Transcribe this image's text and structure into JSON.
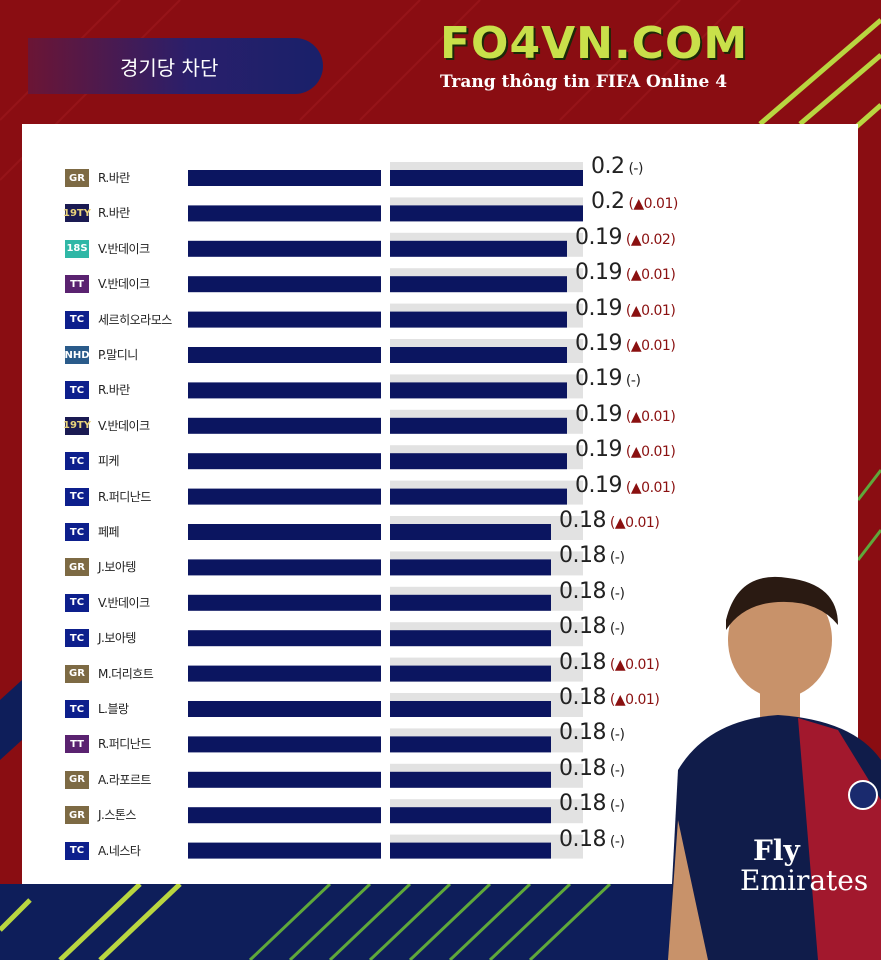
{
  "header": {
    "title": "경기당 차단",
    "logo_main": "FO4VN.COM",
    "logo_sub": "Trang thông tin FIFA Online 4"
  },
  "colors": {
    "background": "#8a0d12",
    "bar": "#0b1560",
    "bar_track": "#e2e2e2",
    "accent_green": "#b9d640",
    "up_arrow": "#8a1010"
  },
  "badge_colors": {
    "GR": "#7d6a44",
    "19TY": "#1a1a52",
    "18S": "#2fb7a6",
    "TT": "#5a2270",
    "TC": "#0d1f8c",
    "NHD": "#2a5b8a"
  },
  "chart_data": {
    "type": "bar",
    "orientation": "horizontal",
    "xlim": [
      0,
      0.2
    ],
    "rows": [
      {
        "badge": "GR",
        "name": "R.바란",
        "value": 0.2,
        "label": "0.2",
        "change": "(-)"
      },
      {
        "badge": "19TY",
        "name": "R.바란",
        "value": 0.2,
        "label": "0.2",
        "change": "(▲0.01)"
      },
      {
        "badge": "18S",
        "name": "V.반데이크",
        "value": 0.19,
        "label": "0.19",
        "change": "(▲0.02)"
      },
      {
        "badge": "TT",
        "name": "V.반데이크",
        "value": 0.19,
        "label": "0.19",
        "change": "(▲0.01)"
      },
      {
        "badge": "TC",
        "name": "세르히오라모스",
        "value": 0.19,
        "label": "0.19",
        "change": "(▲0.01)"
      },
      {
        "badge": "NHD",
        "name": "P.말디니",
        "value": 0.19,
        "label": "0.19",
        "change": "(▲0.01)"
      },
      {
        "badge": "TC",
        "name": "R.바란",
        "value": 0.19,
        "label": "0.19",
        "change": "(-)"
      },
      {
        "badge": "19TY",
        "name": "V.반데이크",
        "value": 0.19,
        "label": "0.19",
        "change": "(▲0.01)"
      },
      {
        "badge": "TC",
        "name": "피케",
        "value": 0.19,
        "label": "0.19",
        "change": "(▲0.01)"
      },
      {
        "badge": "TC",
        "name": "R.퍼디난드",
        "value": 0.19,
        "label": "0.19",
        "change": "(▲0.01)"
      },
      {
        "badge": "TC",
        "name": "페페",
        "value": 0.18,
        "label": "0.18",
        "change": "(▲0.01)"
      },
      {
        "badge": "GR",
        "name": "J.보아텡",
        "value": 0.18,
        "label": "0.18",
        "change": "(-)"
      },
      {
        "badge": "TC",
        "name": "V.반데이크",
        "value": 0.18,
        "label": "0.18",
        "change": "(-)"
      },
      {
        "badge": "TC",
        "name": "J.보아텡",
        "value": 0.18,
        "label": "0.18",
        "change": "(-)"
      },
      {
        "badge": "GR",
        "name": "M.더리흐트",
        "value": 0.18,
        "label": "0.18",
        "change": "(▲0.01)"
      },
      {
        "badge": "TC",
        "name": "L.블랑",
        "value": 0.18,
        "label": "0.18",
        "change": "(▲0.01)"
      },
      {
        "badge": "TT",
        "name": "R.퍼디난드",
        "value": 0.18,
        "label": "0.18",
        "change": "(-)"
      },
      {
        "badge": "GR",
        "name": "A.라포르트",
        "value": 0.18,
        "label": "0.18",
        "change": "(-)"
      },
      {
        "badge": "GR",
        "name": "J.스톤스",
        "value": 0.18,
        "label": "0.18",
        "change": "(-)"
      },
      {
        "badge": "TC",
        "name": "A.네스타",
        "value": 0.18,
        "label": "0.18",
        "change": "(-)"
      }
    ]
  }
}
